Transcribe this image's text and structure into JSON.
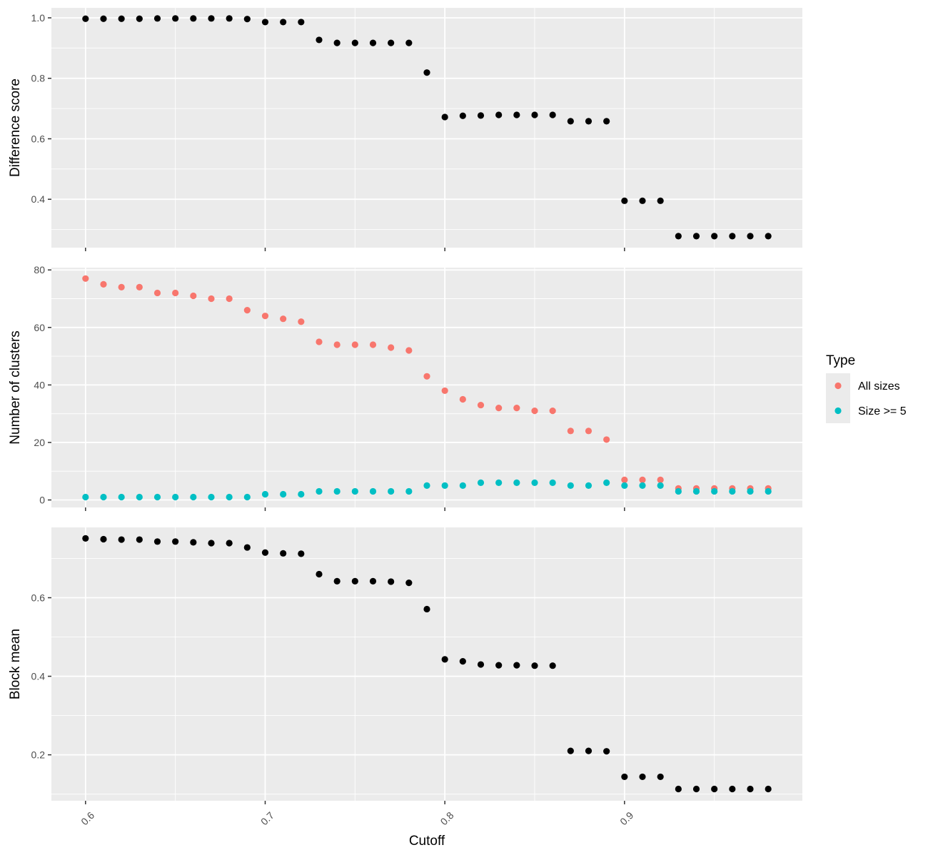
{
  "chart_data": {
    "type": "scatter",
    "layout": "three vertically stacked facets sharing the x axis",
    "grid": true,
    "xlabel": "Cutoff",
    "x_ticks": [
      0.6,
      0.7,
      0.8,
      0.9
    ],
    "x_tick_labels": [
      "0.6",
      "0.7",
      "0.8",
      "0.9"
    ],
    "xlim": [
      0.581,
      0.999
    ],
    "x": [
      0.6,
      0.61,
      0.62,
      0.63,
      0.64,
      0.65,
      0.66,
      0.67,
      0.68,
      0.69,
      0.7,
      0.71,
      0.72,
      0.73,
      0.74,
      0.75,
      0.76,
      0.77,
      0.78,
      0.79,
      0.8,
      0.81,
      0.82,
      0.83,
      0.84,
      0.85,
      0.86,
      0.87,
      0.88,
      0.89,
      0.9,
      0.91,
      0.92,
      0.93,
      0.94,
      0.95,
      0.96,
      0.97,
      0.98
    ],
    "panels": [
      {
        "ylabel": "Difference score",
        "ylim": [
          0.24,
          1.033
        ],
        "y_ticks": [
          0.4,
          0.6,
          0.8,
          1.0
        ],
        "y_tick_labels": [
          "0.4",
          "0.6",
          "0.8",
          "1.0"
        ],
        "series": [
          {
            "color": "#000000",
            "values": [
              0.997,
              0.997,
              0.997,
              0.997,
              0.998,
              0.998,
              0.998,
              0.998,
              0.998,
              0.996,
              0.986,
              0.986,
              0.986,
              0.927,
              0.917,
              0.917,
              0.917,
              0.917,
              0.917,
              0.819,
              0.672,
              0.676,
              0.677,
              0.679,
              0.679,
              0.679,
              0.679,
              0.658,
              0.658,
              0.658,
              0.395,
              0.395,
              0.395,
              0.278,
              0.278,
              0.278,
              0.278,
              0.278,
              0.278
            ]
          }
        ]
      },
      {
        "ylabel": "Number of clusters",
        "ylim": [
          -2.6,
          80.8
        ],
        "y_ticks": [
          0,
          20,
          40,
          60,
          80
        ],
        "y_tick_labels": [
          "0",
          "20",
          "40",
          "60",
          "80"
        ],
        "series": [
          {
            "name": "All sizes",
            "color": "#F8766D",
            "values": [
              77,
              75,
              74,
              74,
              72,
              72,
              71,
              70,
              70,
              66,
              64,
              63,
              62,
              55,
              54,
              54,
              54,
              53,
              52,
              43,
              38,
              35,
              33,
              32,
              32,
              31,
              31,
              24,
              24,
              21,
              7,
              7,
              7,
              4,
              4,
              4,
              4,
              4,
              4
            ]
          },
          {
            "name": "Size >= 5",
            "color": "#00BFC4",
            "values": [
              1,
              1,
              1,
              1,
              1,
              1,
              1,
              1,
              1,
              1,
              2,
              2,
              2,
              3,
              3,
              3,
              3,
              3,
              3,
              5,
              5,
              5,
              6,
              6,
              6,
              6,
              6,
              5,
              5,
              6,
              5,
              5,
              5,
              3,
              3,
              3,
              3,
              3,
              3
            ]
          }
        ]
      },
      {
        "ylabel": "Block mean",
        "ylim": [
          0.083,
          0.779
        ],
        "y_ticks": [
          0.2,
          0.4,
          0.6
        ],
        "y_tick_labels": [
          "0.2",
          "0.4",
          "0.6"
        ],
        "series": [
          {
            "color": "#000000",
            "values": [
              0.751,
              0.749,
              0.748,
              0.748,
              0.743,
              0.743,
              0.741,
              0.739,
              0.739,
              0.728,
              0.715,
              0.713,
              0.712,
              0.66,
              0.642,
              0.642,
              0.642,
              0.641,
              0.638,
              0.571,
              0.443,
              0.438,
              0.43,
              0.428,
              0.428,
              0.427,
              0.427,
              0.21,
              0.21,
              0.209,
              0.144,
              0.144,
              0.144,
              0.113,
              0.113,
              0.113,
              0.113,
              0.113,
              0.113
            ]
          }
        ]
      }
    ],
    "legend": {
      "title": "Type",
      "position": "right",
      "entries": [
        {
          "label": "All sizes",
          "color": "#F8766D"
        },
        {
          "label": "Size >= 5",
          "color": "#00BFC4"
        }
      ]
    },
    "colors": {
      "panel_background": "#EBEBEB",
      "grid_major": "#FFFFFF",
      "point_default": "#000000"
    }
  }
}
